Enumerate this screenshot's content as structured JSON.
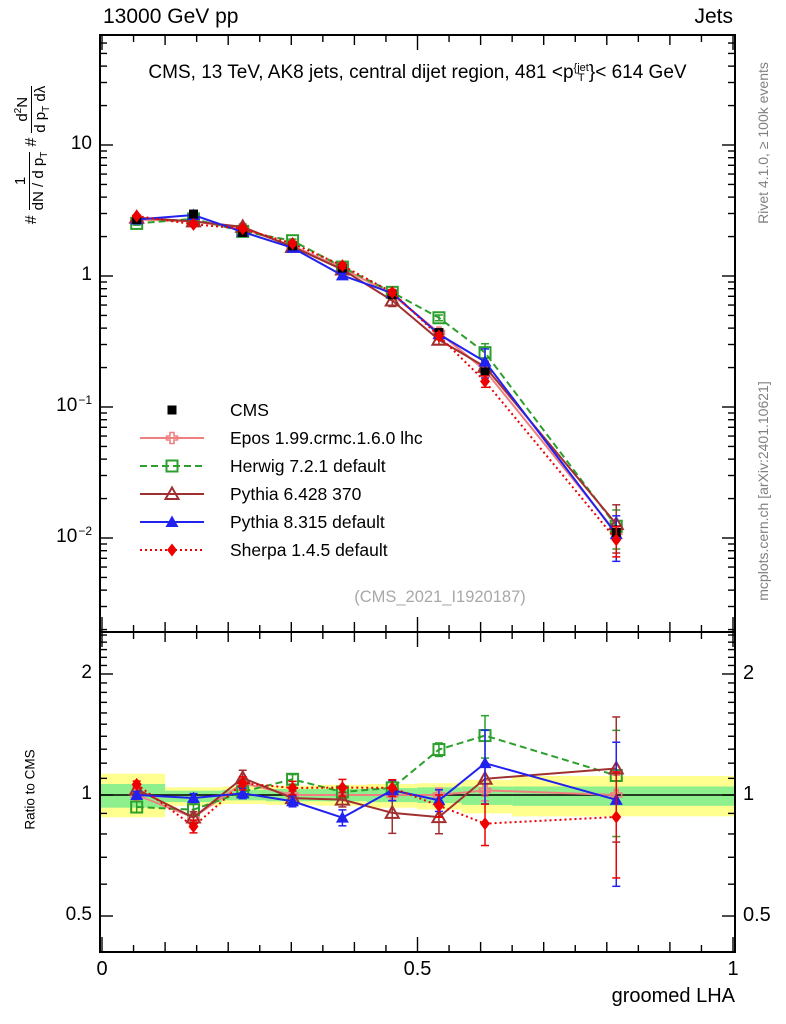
{
  "header": {
    "beam": "13000 GeV pp",
    "group": "Jets"
  },
  "title": {
    "pre": "CMS, 13 TeV, AK8 jets, central dijet region, 481 <p",
    "sup": "{jet",
    "sub": "T",
    "post": "}< 614 GeV"
  },
  "ylabel_main": {
    "hash1": "#",
    "frac1_num": "1",
    "frac1_den_base": "dN / d p",
    "frac1_den_sub": "T",
    "hash2": "#",
    "frac2_num_base": "d",
    "frac2_num_sup": "2",
    "frac2_num_post": "N",
    "frac2_den_base": "d p",
    "frac2_den_sub": "T",
    "frac2_den_post": " dλ"
  },
  "ratio_ylabel": "Ratio to CMS",
  "xlabel": "groomed LHA",
  "watermark": "(CMS_2021_I1920187)",
  "side_notes": {
    "top": "Rivet 4.1.0, ≥ 100k events",
    "bottom": "mcplots.cern.ch [arXiv:2401.10621]"
  },
  "chart_data": {
    "type": "line",
    "title": "CMS, 13 TeV, AK8 jets, central dijet region, 481 < pT{jet} < 614 GeV",
    "xlabel": "groomed LHA",
    "ylabel": "# 1/(dN/dpT) # d²N/(dpT dλ)",
    "ratio_label": "Ratio to CMS",
    "x": [
      0.055,
      0.145,
      0.223,
      0.302,
      0.381,
      0.46,
      0.534,
      0.607,
      0.815
    ],
    "series": [
      {
        "name": "CMS",
        "color": "#000000",
        "marker": "square-filled",
        "line": "none",
        "values": [
          2.7,
          2.97,
          2.15,
          1.7,
          1.15,
          0.72,
          0.37,
          0.185,
          0.011
        ],
        "ratio_err": [
          0.02,
          0.02,
          0.02,
          0.02,
          0.03,
          0.03,
          0.04,
          0.05,
          0.12
        ]
      },
      {
        "name": "Epos 1.99.crmc.1.6.0 lhc",
        "color": "#f08080",
        "marker": "cross-open",
        "line": "solid",
        "values": [
          2.7,
          2.61,
          2.3,
          1.7,
          1.15,
          0.72,
          0.37,
          0.19,
          0.011
        ],
        "ratio_err": [
          0.02,
          0.02,
          0.02,
          0.03,
          0.03,
          0.03,
          0.04,
          0.06,
          0.12
        ]
      },
      {
        "name": "Herwig 7.2.1 default",
        "color": "#2ca02c",
        "marker": "square-open",
        "line": "dashed",
        "values": [
          2.52,
          2.73,
          2.19,
          1.86,
          1.17,
          0.75,
          0.48,
          0.26,
          0.0123
        ],
        "ratio_err": [
          0.03,
          0.03,
          0.03,
          0.03,
          0.035,
          0.04,
          0.05,
          0.17,
          0.33
        ]
      },
      {
        "name": "Pythia 6.428 370",
        "color": "#a03030",
        "marker": "triangle-open",
        "line": "solid",
        "values": [
          2.79,
          2.61,
          2.37,
          1.67,
          1.12,
          0.65,
          0.326,
          0.203,
          0.0128
        ],
        "ratio_err": [
          0.02,
          0.03,
          0.05,
          0.04,
          0.04,
          0.1,
          0.08,
          0.1,
          0.4
        ]
      },
      {
        "name": "Pythia 8.315 default",
        "color": "#2222ee",
        "marker": "triangle-filled",
        "line": "solid",
        "values": [
          2.7,
          2.92,
          2.17,
          1.64,
          1.01,
          0.74,
          0.359,
          0.222,
          0.0107
        ],
        "ratio_err": [
          0.02,
          0.025,
          0.03,
          0.03,
          0.04,
          0.06,
          0.06,
          0.25,
          0.38
        ]
      },
      {
        "name": "Sherpa 1.4.5 default",
        "color": "#ee0000",
        "marker": "diamond-filled",
        "line": "dotted",
        "values": [
          2.87,
          2.48,
          2.3,
          1.77,
          1.2,
          0.75,
          0.348,
          0.157,
          0.0097
        ],
        "ratio_err": [
          0.02,
          0.03,
          0.04,
          0.04,
          0.05,
          0.05,
          0.06,
          0.1,
          0.26
        ]
      }
    ],
    "axes": {
      "xlim": [
        0,
        1
      ],
      "x_ticks": [
        {
          "v": 0,
          "label": "0"
        },
        {
          "v": 0.5,
          "label": "0.5"
        },
        {
          "v": 1,
          "label": "1"
        }
      ],
      "x_minor_step": 0.05,
      "main_yscale": "log",
      "main_ylim": [
        0.0019,
        69
      ],
      "main_y_ticks": [
        {
          "v": 10,
          "base": "10",
          "exp": ""
        },
        {
          "v": 1,
          "base": "1",
          "exp": ""
        },
        {
          "v": 0.1,
          "base": "10",
          "exp": "−1"
        },
        {
          "v": 0.01,
          "base": "10",
          "exp": "−2"
        }
      ],
      "ratio_yscale": "log",
      "ratio_ylim": [
        0.41,
        2.54
      ],
      "ratio_y_ticks": [
        {
          "v": 2,
          "label": "2"
        },
        {
          "v": 1,
          "label": "1"
        },
        {
          "v": 0.5,
          "label": "0.5"
        }
      ]
    },
    "band_colors": {
      "yellow": "#ffff8f",
      "green": "#8df08d"
    },
    "ratio_bands": [
      {
        "x0": 0.0,
        "x1": 0.1,
        "yellow": [
          0.88,
          1.13
        ],
        "green": [
          0.93,
          1.065
        ]
      },
      {
        "x0": 0.1,
        "x1": 0.19,
        "yellow": [
          0.94,
          1.045
        ],
        "green": [
          0.96,
          1.025
        ]
      },
      {
        "x0": 0.19,
        "x1": 0.26,
        "yellow": [
          0.95,
          1.05
        ],
        "green": [
          0.97,
          1.03
        ]
      },
      {
        "x0": 0.26,
        "x1": 0.34,
        "yellow": [
          0.945,
          1.055
        ],
        "green": [
          0.965,
          1.035
        ]
      },
      {
        "x0": 0.34,
        "x1": 0.42,
        "yellow": [
          0.94,
          1.06
        ],
        "green": [
          0.965,
          1.035
        ]
      },
      {
        "x0": 0.42,
        "x1": 0.5,
        "yellow": [
          0.93,
          1.065
        ],
        "green": [
          0.96,
          1.04
        ]
      },
      {
        "x0": 0.5,
        "x1": 0.57,
        "yellow": [
          0.92,
          1.07
        ],
        "green": [
          0.955,
          1.045
        ]
      },
      {
        "x0": 0.57,
        "x1": 0.65,
        "yellow": [
          0.9,
          1.09
        ],
        "green": [
          0.945,
          1.05
        ]
      },
      {
        "x0": 0.65,
        "x1": 1.0,
        "yellow": [
          0.885,
          1.115
        ],
        "green": [
          0.94,
          1.05
        ]
      }
    ]
  }
}
